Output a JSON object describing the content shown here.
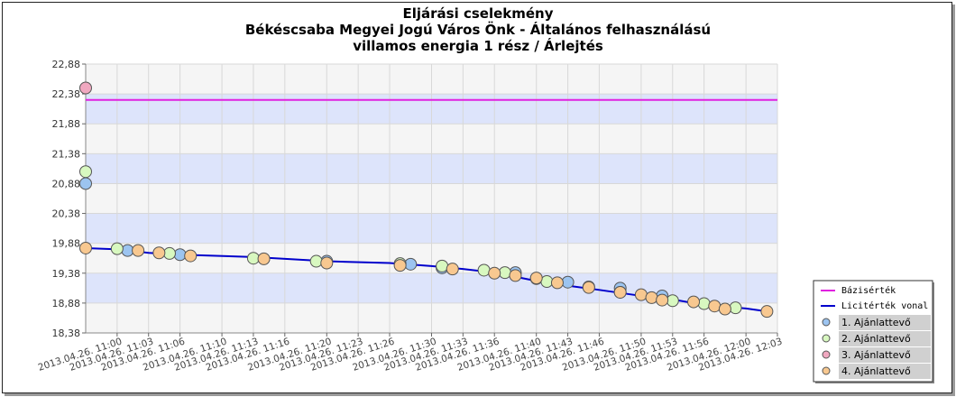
{
  "title": [
    "Eljárási cselekmény",
    "Békéscsaba Megyei Jogú Város Önk - Általános felhasználású",
    "villamos energia 1 rész / Árlejtés"
  ],
  "chart_data": {
    "type": "line",
    "title": "Eljárási cselekmény Békéscsaba Megyei Jogú Város Önk - Általános felhasználású villamos energia 1 rész / Árlejtés",
    "ylim": [
      18.38,
      22.88
    ],
    "y_ticks": [
      "18,38",
      "18,88",
      "19,38",
      "19,88",
      "20,38",
      "20,88",
      "21,38",
      "21,88",
      "22,38",
      "22,88"
    ],
    "x_ticks": [
      "2013.04.26. 11:00",
      "2013.04.26. 11:03",
      "2013.04.26. 11:06",
      "2013.04.26. 11:10",
      "2013.04.26. 11:13",
      "2013.04.26. 11:16",
      "2013.04.26. 11:20",
      "2013.04.26. 11:23",
      "2013.04.26. 11:26",
      "2013.04.26. 11:30",
      "2013.04.26. 11:33",
      "2013.04.26. 11:36",
      "2013.04.26. 11:40",
      "2013.04.26. 11:43",
      "2013.04.26. 11:46",
      "2013.04.26. 11:50",
      "2013.04.26. 11:53",
      "2013.04.26. 11:56",
      "2013.04.26. 12:00",
      "2013.04.26. 12:03"
    ],
    "x_range": [
      "2013-04-26 10:57",
      "2013-04-26 12:03"
    ],
    "grid": true,
    "legend_position": "bottom-right",
    "base_value": {
      "name": "Bázisérték",
      "value": 22.28,
      "color": "#e020e0"
    },
    "bid_line": {
      "name": "Licitérték vonal",
      "color": "#0000cc",
      "points": [
        {
          "x": "2013-04-26 10:57",
          "y": 19.8
        },
        {
          "x": "2013-04-26 11:00",
          "y": 19.78
        },
        {
          "x": "2013-04-26 11:01",
          "y": 19.76
        },
        {
          "x": "2013-04-26 11:03",
          "y": 19.72
        },
        {
          "x": "2013-04-26 11:06",
          "y": 19.69
        },
        {
          "x": "2013-04-26 11:13",
          "y": 19.65
        },
        {
          "x": "2013-04-26 11:20",
          "y": 19.58
        },
        {
          "x": "2013-04-26 11:26",
          "y": 19.55
        },
        {
          "x": "2013-04-26 11:30",
          "y": 19.5
        },
        {
          "x": "2013-04-26 11:33",
          "y": 19.45
        },
        {
          "x": "2013-04-26 11:36",
          "y": 19.39
        },
        {
          "x": "2013-04-26 11:40",
          "y": 19.25
        },
        {
          "x": "2013-04-26 11:43",
          "y": 19.17
        },
        {
          "x": "2013-04-26 11:46",
          "y": 19.1
        },
        {
          "x": "2013-04-26 11:50",
          "y": 19.0
        },
        {
          "x": "2013-04-26 11:53",
          "y": 18.94
        },
        {
          "x": "2013-04-26 11:56",
          "y": 18.85
        },
        {
          "x": "2013-04-26 12:00",
          "y": 18.79
        },
        {
          "x": "2013-04-26 12:02",
          "y": 18.74
        }
      ]
    },
    "series": [
      {
        "name": "1. Ajánlattevő",
        "color": "#9cc4f0",
        "points": [
          {
            "x": "2013-04-26 10:57",
            "y": 20.88
          },
          {
            "x": "2013-04-26 11:01",
            "y": 19.76
          },
          {
            "x": "2013-04-26 11:06",
            "y": 19.69
          },
          {
            "x": "2013-04-26 11:20",
            "y": 19.58
          },
          {
            "x": "2013-04-26 11:28",
            "y": 19.53
          },
          {
            "x": "2013-04-26 11:31",
            "y": 19.47
          },
          {
            "x": "2013-04-26 11:38",
            "y": 19.39
          },
          {
            "x": "2013-04-26 11:40",
            "y": 19.29
          },
          {
            "x": "2013-04-26 11:43",
            "y": 19.23
          },
          {
            "x": "2013-04-26 11:48",
            "y": 19.13
          },
          {
            "x": "2013-04-26 11:52",
            "y": 19.0
          }
        ]
      },
      {
        "name": "2. Ajánlattevő",
        "color": "#d8f8c0",
        "points": [
          {
            "x": "2013-04-26 10:57",
            "y": 21.08
          },
          {
            "x": "2013-04-26 11:00",
            "y": 19.79
          },
          {
            "x": "2013-04-26 11:05",
            "y": 19.71
          },
          {
            "x": "2013-04-26 11:13",
            "y": 19.63
          },
          {
            "x": "2013-04-26 11:19",
            "y": 19.58
          },
          {
            "x": "2013-04-26 11:27",
            "y": 19.54
          },
          {
            "x": "2013-04-26 11:31",
            "y": 19.5
          },
          {
            "x": "2013-04-26 11:35",
            "y": 19.43
          },
          {
            "x": "2013-04-26 11:37",
            "y": 19.39
          },
          {
            "x": "2013-04-26 11:41",
            "y": 19.24
          },
          {
            "x": "2013-04-26 11:45",
            "y": 19.15
          },
          {
            "x": "2013-04-26 11:48",
            "y": 19.06
          },
          {
            "x": "2013-04-26 11:53",
            "y": 18.92
          },
          {
            "x": "2013-04-26 11:56",
            "y": 18.87
          },
          {
            "x": "2013-04-26 11:59",
            "y": 18.8
          }
        ]
      },
      {
        "name": "3. Ajánlattevő",
        "color": "#f0a8c0",
        "points": [
          {
            "x": "2013-04-26 10:57",
            "y": 22.48
          }
        ]
      },
      {
        "name": "4. Ajánlattevő",
        "color": "#f8c890",
        "points": [
          {
            "x": "2013-04-26 10:57",
            "y": 19.8
          },
          {
            "x": "2013-04-26 11:02",
            "y": 19.76
          },
          {
            "x": "2013-04-26 11:04",
            "y": 19.72
          },
          {
            "x": "2013-04-26 11:07",
            "y": 19.67
          },
          {
            "x": "2013-04-26 11:14",
            "y": 19.62
          },
          {
            "x": "2013-04-26 11:20",
            "y": 19.55
          },
          {
            "x": "2013-04-26 11:27",
            "y": 19.51
          },
          {
            "x": "2013-04-26 11:32",
            "y": 19.45
          },
          {
            "x": "2013-04-26 11:36",
            "y": 19.38
          },
          {
            "x": "2013-04-26 11:38",
            "y": 19.34
          },
          {
            "x": "2013-04-26 11:40",
            "y": 19.3
          },
          {
            "x": "2013-04-26 11:42",
            "y": 19.22
          },
          {
            "x": "2013-04-26 11:45",
            "y": 19.14
          },
          {
            "x": "2013-04-26 11:48",
            "y": 19.06
          },
          {
            "x": "2013-04-26 11:50",
            "y": 19.02
          },
          {
            "x": "2013-04-26 11:51",
            "y": 18.97
          },
          {
            "x": "2013-04-26 11:52",
            "y": 18.93
          },
          {
            "x": "2013-04-26 11:55",
            "y": 18.9
          },
          {
            "x": "2013-04-26 11:57",
            "y": 18.83
          },
          {
            "x": "2013-04-26 11:58",
            "y": 18.78
          },
          {
            "x": "2013-04-26 12:02",
            "y": 18.74
          }
        ]
      }
    ]
  }
}
